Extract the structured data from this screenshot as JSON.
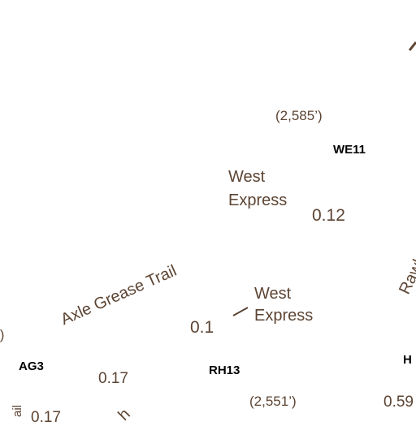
{
  "map": {
    "colors": {
      "label_brown": "#5c4433",
      "code_black": "#000000",
      "background": "#ffffff"
    },
    "elevations": {
      "e1": "(2,585’)",
      "e2": "(2,551’)",
      "e3": "’)"
    },
    "codes": {
      "c1": "WE11",
      "c2": "AG3",
      "c3": "RH13",
      "c4": "H"
    },
    "trails": {
      "west_express_1": [
        "West",
        "Express"
      ],
      "west_express_2": [
        "West",
        "Express"
      ],
      "axle_grease": "Axle Grease Trail",
      "rawhide": "Rawhid",
      "partial_bottom": "h",
      "partial_left": "ail"
    },
    "distances": {
      "d1": "0.12",
      "d2": "0.1",
      "d3": "0.17",
      "d4": "0.59",
      "d5": "0.17"
    }
  }
}
